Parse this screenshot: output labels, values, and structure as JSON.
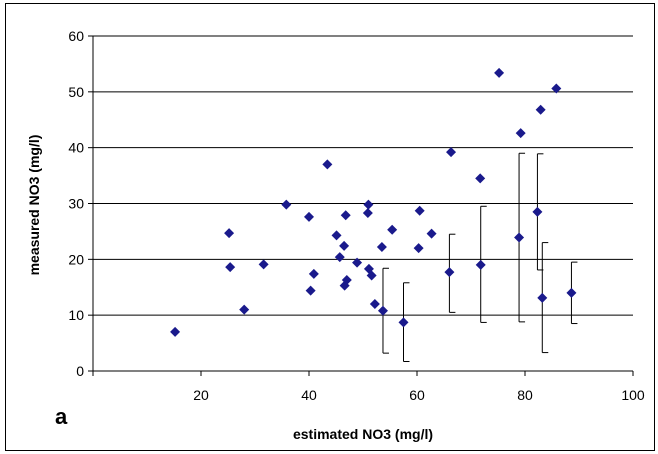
{
  "chart_data": {
    "type": "scatter",
    "panel_label": "a",
    "xlabel": "estimated NO3 (mg/l)",
    "ylabel": "measured NO3 (mg/l)",
    "xlim": [
      0,
      100
    ],
    "ylim": [
      0,
      60
    ],
    "x_ticks": [
      0,
      20,
      40,
      60,
      80,
      100
    ],
    "x_tick_labels": [
      "",
      "20",
      "40",
      "60",
      "80",
      "100"
    ],
    "y_ticks": [
      0,
      10,
      20,
      30,
      40,
      50,
      60
    ],
    "grid": "horizontal",
    "marker_color": "#1a1a8c",
    "points": [
      {
        "x": 15.2,
        "y": 7.0
      },
      {
        "x": 25.2,
        "y": 24.7
      },
      {
        "x": 25.4,
        "y": 18.6
      },
      {
        "x": 28.0,
        "y": 11.0
      },
      {
        "x": 31.6,
        "y": 19.1
      },
      {
        "x": 35.8,
        "y": 29.8
      },
      {
        "x": 40.0,
        "y": 27.6
      },
      {
        "x": 40.3,
        "y": 14.4
      },
      {
        "x": 40.9,
        "y": 17.4
      },
      {
        "x": 43.4,
        "y": 37.0
      },
      {
        "x": 45.1,
        "y": 24.3
      },
      {
        "x": 45.7,
        "y": 20.4
      },
      {
        "x": 46.5,
        "y": 22.4
      },
      {
        "x": 46.6,
        "y": 15.3
      },
      {
        "x": 46.8,
        "y": 27.9
      },
      {
        "x": 47.0,
        "y": 16.3
      },
      {
        "x": 48.9,
        "y": 19.4
      },
      {
        "x": 50.9,
        "y": 28.3
      },
      {
        "x": 51.0,
        "y": 29.8
      },
      {
        "x": 51.1,
        "y": 18.3
      },
      {
        "x": 51.6,
        "y": 17.1
      },
      {
        "x": 52.2,
        "y": 12.0
      },
      {
        "x": 53.5,
        "y": 22.2
      },
      {
        "x": 53.7,
        "y": 10.8,
        "err_low": 3.2,
        "err_high": 18.4
      },
      {
        "x": 55.4,
        "y": 25.3
      },
      {
        "x": 57.5,
        "y": 8.7,
        "err_low": 1.7,
        "err_high": 15.8
      },
      {
        "x": 60.3,
        "y": 22.0
      },
      {
        "x": 60.5,
        "y": 28.7
      },
      {
        "x": 62.7,
        "y": 24.6
      },
      {
        "x": 66.0,
        "y": 17.7,
        "err_low": 10.5,
        "err_high": 24.5
      },
      {
        "x": 66.3,
        "y": 39.2
      },
      {
        "x": 71.7,
        "y": 34.5
      },
      {
        "x": 71.8,
        "y": 19.0,
        "err_low": 8.7,
        "err_high": 29.5
      },
      {
        "x": 75.2,
        "y": 53.4
      },
      {
        "x": 78.9,
        "y": 23.9,
        "err_low": 8.8,
        "err_high": 39.0
      },
      {
        "x": 79.2,
        "y": 42.6
      },
      {
        "x": 82.3,
        "y": 28.5,
        "err_low": 18.1,
        "err_high": 38.9
      },
      {
        "x": 82.9,
        "y": 46.8
      },
      {
        "x": 83.2,
        "y": 13.1,
        "err_low": 3.3,
        "err_high": 23.0
      },
      {
        "x": 85.8,
        "y": 50.6
      },
      {
        "x": 88.6,
        "y": 14.0,
        "err_low": 8.5,
        "err_high": 19.5
      }
    ]
  }
}
